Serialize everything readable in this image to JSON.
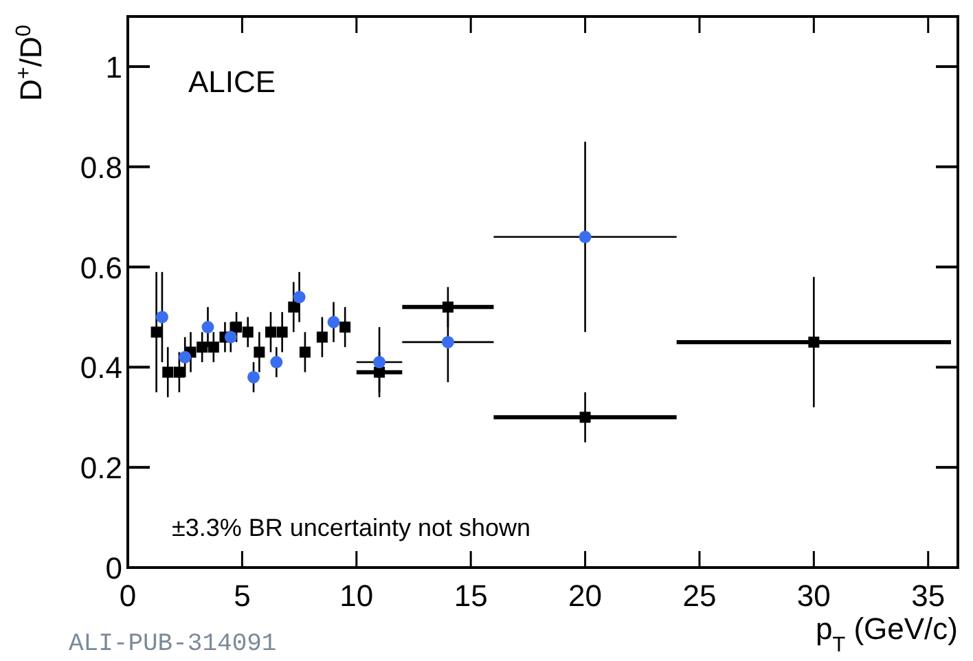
{
  "chart_data": {
    "type": "scatter",
    "xlabel": "p$_{T}$ (GeV/c)",
    "ylabel": "D$^{+}$/D$^{0}$",
    "xlim": [
      0,
      36.3
    ],
    "ylim": [
      0,
      1.1
    ],
    "xticks": [
      0,
      5,
      10,
      15,
      20,
      25,
      30,
      35
    ],
    "yticks": [
      0,
      0.2,
      0.4,
      0.6,
      0.8,
      1
    ],
    "grid": false,
    "annotations": [
      "ALICE",
      "±3.3% BR uncertainty not shown",
      "ALI-PUB-314091"
    ],
    "series": [
      {
        "color": "#000000",
        "marker": "square",
        "x": [
          1.25,
          1.75,
          2.25,
          2.75,
          3.25,
          3.75,
          4.25,
          4.75,
          5.25,
          5.75,
          6.25,
          6.75,
          7.25,
          7.75,
          8.5,
          9.5,
          11,
          14,
          20,
          30
        ],
        "values": [
          0.47,
          0.39,
          0.39,
          0.43,
          0.44,
          0.44,
          0.46,
          0.48,
          0.47,
          0.43,
          0.47,
          0.47,
          0.52,
          0.43,
          0.46,
          0.48,
          0.39,
          0.52,
          0.3,
          0.45
        ],
        "errors": [
          0.12,
          0.05,
          0.04,
          0.04,
          0.03,
          0.03,
          0.03,
          0.03,
          0.03,
          0.04,
          0.04,
          0.04,
          0.05,
          0.04,
          0.04,
          0.04,
          0.04,
          0.04,
          0.05,
          0.13
        ],
        "xerrors": [
          null,
          null,
          null,
          null,
          null,
          null,
          null,
          null,
          null,
          null,
          null,
          null,
          null,
          null,
          null,
          null,
          1,
          2,
          4,
          6
        ]
      },
      {
        "color": "#3a6ef0",
        "marker": "circle",
        "x": [
          1.5,
          2.5,
          3.5,
          4.5,
          5.5,
          6.5,
          7.5,
          9,
          11,
          14,
          20
        ],
        "values": [
          0.5,
          0.42,
          0.48,
          0.46,
          0.38,
          0.41,
          0.54,
          0.49,
          0.41,
          0.45,
          0.66
        ],
        "errors": [
          0.09,
          0.04,
          0.04,
          0.03,
          0.03,
          0.03,
          0.05,
          0.04,
          0.07,
          0.08,
          0.19
        ],
        "xerrors": [
          null,
          null,
          null,
          null,
          null,
          null,
          null,
          null,
          1,
          2,
          4
        ]
      }
    ]
  }
}
